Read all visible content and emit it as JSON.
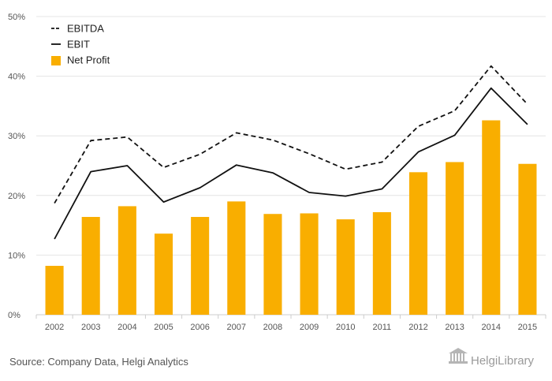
{
  "chart_data": {
    "type": "bar",
    "categories": [
      "2002",
      "2003",
      "2004",
      "2005",
      "2006",
      "2007",
      "2008",
      "2009",
      "2010",
      "2011",
      "2012",
      "2013",
      "2014",
      "2015"
    ],
    "series": [
      {
        "name": "EBITDA",
        "type": "line",
        "style": "dashed",
        "color": "#111111",
        "values": [
          18.7,
          29.2,
          29.8,
          24.7,
          26.9,
          30.5,
          29.3,
          27.0,
          24.4,
          25.6,
          31.6,
          34.2,
          41.7,
          35.3
        ]
      },
      {
        "name": "EBIT",
        "type": "line",
        "style": "solid",
        "color": "#111111",
        "values": [
          12.7,
          24.0,
          25.0,
          18.9,
          21.3,
          25.1,
          23.8,
          20.5,
          19.9,
          21.1,
          27.3,
          30.1,
          38.0,
          31.9
        ]
      },
      {
        "name": "Net Profit",
        "type": "bar",
        "color": "#f9ae00",
        "values": [
          8.2,
          16.4,
          18.2,
          13.6,
          16.4,
          19.0,
          16.9,
          17.0,
          16.0,
          17.2,
          23.9,
          25.6,
          32.6,
          25.3
        ]
      }
    ],
    "yticks": [
      "0%",
      "10%",
      "20%",
      "30%",
      "40%",
      "50%"
    ],
    "ylim": [
      0,
      50
    ],
    "grid": true,
    "legend_position": "top-left",
    "source": "Source: Company Data, Helgi Analytics",
    "logo": "HelgiLibrary"
  }
}
